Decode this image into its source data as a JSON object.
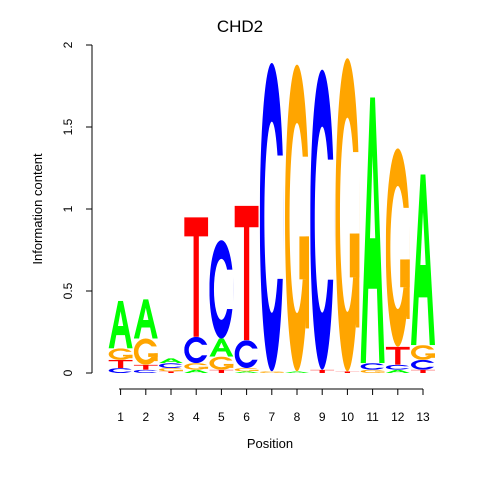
{
  "chart_data": {
    "type": "sequence-logo",
    "title": "CHD2",
    "xlabel": "Position",
    "ylabel": "Information content",
    "ylim": [
      0,
      2
    ],
    "yticks": [
      "0",
      "0.5",
      "1",
      "1.5",
      "2"
    ],
    "categories": [
      "1",
      "2",
      "3",
      "4",
      "5",
      "6",
      "7",
      "8",
      "9",
      "10",
      "11",
      "12",
      "13"
    ],
    "colors": {
      "A": "#00ff00",
      "C": "#0000ff",
      "G": "#ffa500",
      "T": "#ff0000"
    },
    "positions": [
      [
        [
          "C",
          0.03
        ],
        [
          "T",
          0.05
        ],
        [
          "G",
          0.07
        ],
        [
          "A",
          0.29
        ]
      ],
      [
        [
          "C",
          0.02
        ],
        [
          "T",
          0.03
        ],
        [
          "G",
          0.16
        ],
        [
          "A",
          0.24
        ]
      ],
      [
        [
          "T",
          0.01
        ],
        [
          "G",
          0.02
        ],
        [
          "C",
          0.03
        ],
        [
          "A",
          0.03
        ]
      ],
      [
        [
          "A",
          0.02
        ],
        [
          "G",
          0.04
        ],
        [
          "C",
          0.16
        ],
        [
          "T",
          0.73
        ]
      ],
      [
        [
          "T",
          0.02
        ],
        [
          "G",
          0.08
        ],
        [
          "A",
          0.11
        ],
        [
          "C",
          0.6
        ]
      ],
      [
        [
          "A",
          0.01
        ],
        [
          "G",
          0.02
        ],
        [
          "C",
          0.17
        ],
        [
          "T",
          0.82
        ]
      ],
      [
        [
          "G",
          0.01
        ],
        [
          "C",
          1.88
        ]
      ],
      [
        [
          "A",
          0.01
        ],
        [
          "G",
          1.87
        ]
      ],
      [
        [
          "T",
          0.02
        ],
        [
          "C",
          1.83
        ]
      ],
      [
        [
          "T",
          0.01
        ],
        [
          "G",
          1.91
        ]
      ],
      [
        [
          "G",
          0.02
        ],
        [
          "C",
          0.04
        ],
        [
          "A",
          1.62
        ]
      ],
      [
        [
          "A",
          0.02
        ],
        [
          "C",
          0.03
        ],
        [
          "T",
          0.11
        ],
        [
          "G",
          1.21
        ]
      ],
      [
        [
          "T",
          0.02
        ],
        [
          "C",
          0.06
        ],
        [
          "G",
          0.09
        ],
        [
          "A",
          1.04
        ]
      ]
    ]
  }
}
